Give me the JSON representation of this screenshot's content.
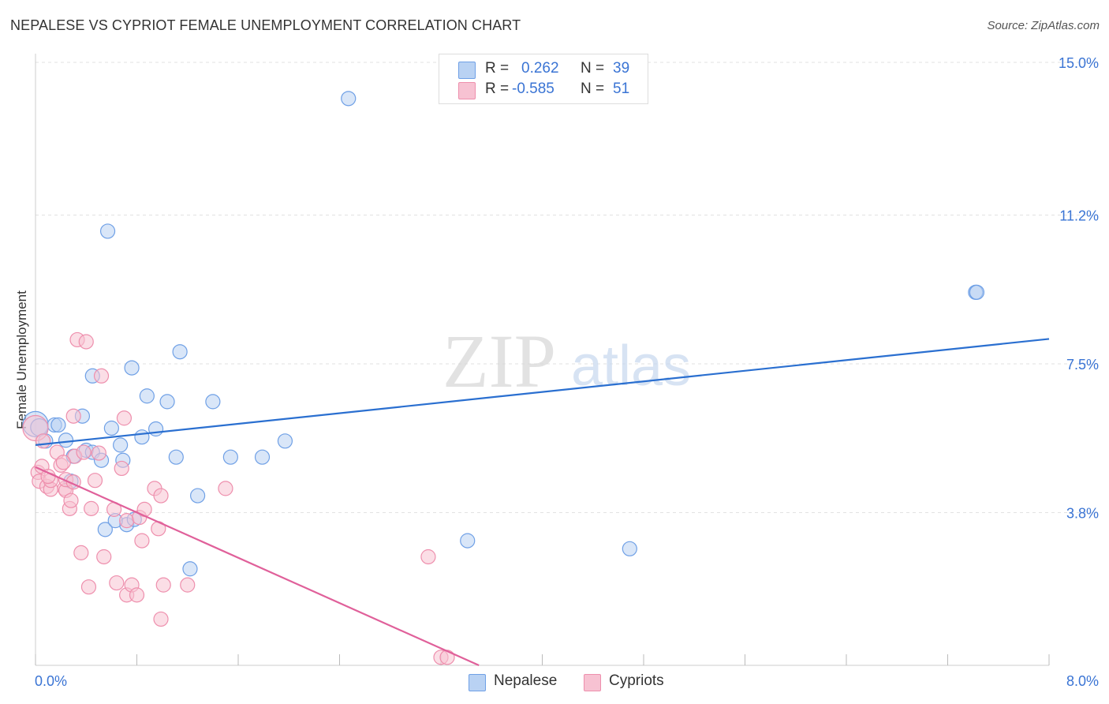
{
  "title": "NEPALESE VS CYPRIOT FEMALE UNEMPLOYMENT CORRELATION CHART",
  "source": "Source: ZipAtlas.com",
  "watermark": {
    "zip": "ZIP",
    "atlas": "atlas"
  },
  "legend": {
    "rows": [
      {
        "r_label": "R =",
        "r_value": "0.262",
        "n_label": "N =",
        "n_value": "39"
      },
      {
        "r_label": "R =",
        "r_value": "-0.585",
        "n_label": "N =",
        "n_value": "51"
      }
    ]
  },
  "bottom_legend": [
    "Nepalese",
    "Cypriots"
  ],
  "colors": {
    "blue_fill": "#b9d2f3",
    "blue_stroke": "#6fa0e6",
    "blue_line": "#2a6fd0",
    "pink_fill": "#f7c2d2",
    "pink_stroke": "#ee8fad",
    "pink_line": "#e0609a",
    "tick_text": "#3a74d4",
    "grid": "#e2e2e2"
  },
  "chart_data": {
    "type": "scatter",
    "title": "NEPALESE VS CYPRIOT FEMALE UNEMPLOYMENT CORRELATION CHART",
    "xlabel": "",
    "ylabel": "Female Unemployment",
    "xlim": [
      0.0,
      8.0
    ],
    "ylim": [
      0.0,
      15.0
    ],
    "x_tick_labels": [
      "0.0%",
      "8.0%"
    ],
    "y_ticks": [
      3.8,
      7.5,
      11.2,
      15.0
    ],
    "y_tick_labels": [
      "3.8%",
      "7.5%",
      "11.2%",
      "15.0%"
    ],
    "grid": true,
    "series": [
      {
        "name": "Nepalese",
        "r": 0.262,
        "n": 39,
        "trend": [
          [
            0.0,
            5.48
          ],
          [
            8.0,
            8.12
          ]
        ],
        "points": [
          [
            0.0,
            6.0,
            16
          ],
          [
            0.03,
            5.92,
            11
          ],
          [
            0.08,
            5.58,
            9
          ],
          [
            0.15,
            5.98,
            9
          ],
          [
            0.18,
            5.98,
            9
          ],
          [
            0.24,
            5.6,
            9
          ],
          [
            0.28,
            4.58,
            9
          ],
          [
            0.3,
            5.2,
            9
          ],
          [
            0.37,
            6.2,
            9
          ],
          [
            0.4,
            5.35,
            9
          ],
          [
            0.45,
            7.2,
            9
          ],
          [
            0.45,
            5.3,
            9
          ],
          [
            0.52,
            5.1,
            9
          ],
          [
            0.55,
            3.38,
            9
          ],
          [
            0.6,
            5.9,
            9
          ],
          [
            0.67,
            5.48,
            9
          ],
          [
            0.69,
            5.1,
            9
          ],
          [
            0.72,
            3.5,
            9
          ],
          [
            0.76,
            7.4,
            9
          ],
          [
            0.78,
            3.63,
            9
          ],
          [
            0.84,
            5.68,
            9
          ],
          [
            0.88,
            6.7,
            9
          ],
          [
            0.95,
            5.88,
            9
          ],
          [
            1.04,
            6.56,
            9
          ],
          [
            1.11,
            5.18,
            9
          ],
          [
            1.14,
            7.8,
            9
          ],
          [
            1.22,
            2.4,
            9
          ],
          [
            1.28,
            4.22,
            9
          ],
          [
            1.4,
            6.56,
            9
          ],
          [
            1.54,
            5.18,
            9
          ],
          [
            1.79,
            5.18,
            9
          ],
          [
            1.97,
            5.58,
            9
          ],
          [
            2.47,
            14.1,
            9
          ],
          [
            3.41,
            3.1,
            9
          ],
          [
            4.69,
            2.9,
            9
          ],
          [
            7.42,
            9.28,
            9
          ],
          [
            7.43,
            9.28,
            9
          ],
          [
            0.57,
            10.8,
            9
          ],
          [
            0.63,
            3.6,
            9
          ]
        ]
      },
      {
        "name": "Cypriots",
        "r": -0.585,
        "n": 51,
        "trend": [
          [
            0.0,
            4.93
          ],
          [
            3.5,
            0.0
          ]
        ],
        "points": [
          [
            0.0,
            5.9,
            16
          ],
          [
            0.02,
            4.8,
            9
          ],
          [
            0.03,
            4.58,
            9
          ],
          [
            0.05,
            4.95,
            9
          ],
          [
            0.09,
            4.45,
            9
          ],
          [
            0.12,
            4.38,
            9
          ],
          [
            0.12,
            4.6,
            9
          ],
          [
            0.17,
            5.3,
            9
          ],
          [
            0.2,
            4.98,
            9
          ],
          [
            0.23,
            4.4,
            9
          ],
          [
            0.24,
            4.35,
            9
          ],
          [
            0.24,
            4.62,
            9
          ],
          [
            0.27,
            3.9,
            9
          ],
          [
            0.28,
            4.1,
            9
          ],
          [
            0.3,
            6.2,
            9
          ],
          [
            0.3,
            4.56,
            9
          ],
          [
            0.31,
            5.2,
            9
          ],
          [
            0.33,
            8.1,
            9
          ],
          [
            0.36,
            2.8,
            9
          ],
          [
            0.38,
            5.3,
            9
          ],
          [
            0.4,
            8.05,
            9
          ],
          [
            0.42,
            1.95,
            9
          ],
          [
            0.44,
            3.9,
            9
          ],
          [
            0.47,
            4.6,
            9
          ],
          [
            0.5,
            5.28,
            9
          ],
          [
            0.52,
            7.2,
            9
          ],
          [
            0.54,
            2.7,
            9
          ],
          [
            0.62,
            3.88,
            9
          ],
          [
            0.64,
            2.05,
            9
          ],
          [
            0.68,
            4.9,
            9
          ],
          [
            0.7,
            6.15,
            9
          ],
          [
            0.72,
            3.6,
            9
          ],
          [
            0.72,
            1.75,
            9
          ],
          [
            0.76,
            2.0,
            9
          ],
          [
            0.8,
            1.75,
            9
          ],
          [
            0.82,
            3.68,
            9
          ],
          [
            0.84,
            3.1,
            9
          ],
          [
            0.86,
            3.88,
            9
          ],
          [
            0.94,
            4.4,
            9
          ],
          [
            0.97,
            3.4,
            9
          ],
          [
            0.99,
            4.22,
            9
          ],
          [
            0.99,
            1.15,
            9
          ],
          [
            1.01,
            2.0,
            9
          ],
          [
            1.2,
            2.0,
            9
          ],
          [
            1.5,
            4.4,
            9
          ],
          [
            3.1,
            2.7,
            9
          ],
          [
            3.2,
            0.2,
            9
          ],
          [
            3.25,
            0.2,
            9
          ],
          [
            0.06,
            5.58,
            9
          ],
          [
            0.1,
            4.7,
            9
          ],
          [
            0.22,
            5.05,
            9
          ]
        ]
      }
    ]
  }
}
